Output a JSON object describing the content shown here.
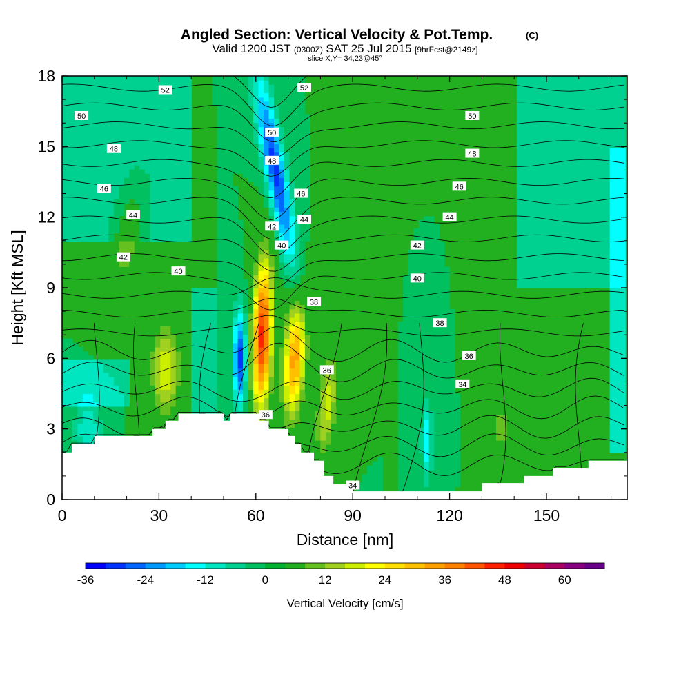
{
  "chart_data": {
    "type": "heatmap",
    "title": "Angled Section: Vertical Velocity & Pot.Temp.",
    "copyright": "(C)",
    "subtitle": {
      "valid": "Valid 1200 JST",
      "utc": "(0300Z)",
      "date": "SAT 25 Jul 2015",
      "forecast": "[9hrFcst@2149z]"
    },
    "slice_note": "slice X,Y= 34,23@45°",
    "xlabel": "Distance [nm]",
    "ylabel": "Height [Kft MSL]",
    "xlim": [
      0,
      175
    ],
    "ylim": [
      0,
      18
    ],
    "xticks": [
      "0",
      "30",
      "60",
      "90",
      "120",
      "150"
    ],
    "xtick_values": [
      0,
      30,
      60,
      90,
      120,
      150
    ],
    "yticks": [
      "0",
      "3",
      "6",
      "9",
      "12",
      "15",
      "18"
    ],
    "ytick_values": [
      0,
      3,
      6,
      9,
      12,
      15,
      18
    ],
    "colorbar": {
      "label": "Vertical Velocity [cm/s]",
      "min": -36,
      "max": 68,
      "step": 4,
      "tick_labels": [
        "-36",
        "-24",
        "-12",
        "0",
        "12",
        "24",
        "36",
        "48",
        "60"
      ],
      "tick_values": [
        -36,
        -24,
        -12,
        0,
        12,
        24,
        36,
        48,
        60
      ],
      "colors": [
        "#0000ff",
        "#0033ff",
        "#0066ff",
        "#0099ff",
        "#00ccff",
        "#00ffff",
        "#00e6c0",
        "#00d090",
        "#00c060",
        "#00b030",
        "#22b020",
        "#66c020",
        "#a0d020",
        "#ccee00",
        "#ffff00",
        "#ffe000",
        "#ffc000",
        "#ffa000",
        "#ff8000",
        "#ff5500",
        "#ff2000",
        "#ee0000",
        "#cc0030",
        "#aa0060",
        "#880080",
        "#660088"
      ]
    },
    "background_value": 0,
    "features": [
      {
        "kind": "downdraft",
        "x": 66,
        "y": 14,
        "value": -30
      },
      {
        "kind": "downdraft",
        "x": 55,
        "y": 6,
        "value": -30
      },
      {
        "kind": "updraft",
        "x": 62,
        "y": 7,
        "value": 46
      },
      {
        "kind": "updraft",
        "x": 72,
        "y": 6,
        "value": 34
      },
      {
        "kind": "updraft",
        "x": 32,
        "y": 5.5,
        "value": 20
      },
      {
        "kind": "updraft",
        "x": 82,
        "y": 4,
        "value": 18
      },
      {
        "kind": "updraft",
        "x": 20,
        "y": 11,
        "value": 10
      },
      {
        "kind": "updraft",
        "x": 136,
        "y": 3,
        "value": 14
      },
      {
        "kind": "downdraft",
        "x": 113,
        "y": 2.5,
        "value": -16
      },
      {
        "kind": "downdraft",
        "x": 8,
        "y": 3,
        "value": -12
      }
    ],
    "terrain": [
      [
        0,
        2
      ],
      [
        3,
        2
      ],
      [
        3,
        2.35
      ],
      [
        10,
        2.35
      ],
      [
        10,
        2.7
      ],
      [
        28,
        2.7
      ],
      [
        28,
        3
      ],
      [
        32,
        3
      ],
      [
        32,
        3.35
      ],
      [
        36,
        3.35
      ],
      [
        36,
        3.65
      ],
      [
        50,
        3.65
      ],
      [
        50,
        3.35
      ],
      [
        52,
        3.35
      ],
      [
        52,
        3.65
      ],
      [
        61,
        3.65
      ],
      [
        61,
        3.35
      ],
      [
        64,
        3.35
      ],
      [
        64,
        3
      ],
      [
        70,
        3
      ],
      [
        70,
        2.7
      ],
      [
        72,
        2.7
      ],
      [
        72,
        2.35
      ],
      [
        74,
        2.35
      ],
      [
        74,
        2
      ],
      [
        78,
        2
      ],
      [
        78,
        1.65
      ],
      [
        81,
        1.65
      ],
      [
        81,
        1
      ],
      [
        84,
        1
      ],
      [
        84,
        0.65
      ],
      [
        90,
        0.65
      ],
      [
        90,
        0.35
      ],
      [
        130,
        0.35
      ],
      [
        130,
        0.7
      ],
      [
        143,
        0.7
      ],
      [
        143,
        1
      ],
      [
        152,
        1
      ],
      [
        152,
        1.35
      ],
      [
        163,
        1.35
      ],
      [
        163,
        1.65
      ],
      [
        175,
        1.65
      ]
    ],
    "isentrope_labels": [
      {
        "text": "52",
        "x": 32,
        "y": 17.4
      },
      {
        "text": "52",
        "x": 75,
        "y": 17.5
      },
      {
        "text": "50",
        "x": 6,
        "y": 16.3
      },
      {
        "text": "50",
        "x": 65,
        "y": 15.6
      },
      {
        "text": "50",
        "x": 127,
        "y": 16.3
      },
      {
        "text": "48",
        "x": 16,
        "y": 14.9
      },
      {
        "text": "48",
        "x": 65,
        "y": 14.4
      },
      {
        "text": "48",
        "x": 127,
        "y": 14.7
      },
      {
        "text": "46",
        "x": 13,
        "y": 13.2
      },
      {
        "text": "46",
        "x": 74,
        "y": 13
      },
      {
        "text": "46",
        "x": 123,
        "y": 13.3
      },
      {
        "text": "44",
        "x": 22,
        "y": 12.1
      },
      {
        "text": "44",
        "x": 75,
        "y": 11.9
      },
      {
        "text": "44",
        "x": 120,
        "y": 12
      },
      {
        "text": "42",
        "x": 19,
        "y": 10.3
      },
      {
        "text": "42",
        "x": 65,
        "y": 11.6
      },
      {
        "text": "42",
        "x": 110,
        "y": 10.8
      },
      {
        "text": "40",
        "x": 36,
        "y": 9.7
      },
      {
        "text": "40",
        "x": 68,
        "y": 10.8
      },
      {
        "text": "40",
        "x": 110,
        "y": 9.4
      },
      {
        "text": "38",
        "x": 78,
        "y": 8.4
      },
      {
        "text": "38",
        "x": 117,
        "y": 7.5
      },
      {
        "text": "36",
        "x": 82,
        "y": 5.5
      },
      {
        "text": "36",
        "x": 126,
        "y": 6.1
      },
      {
        "text": "34",
        "x": 124,
        "y": 4.9
      },
      {
        "text": "36",
        "x": 63,
        "y": 3.6
      },
      {
        "text": "34",
        "x": 90,
        "y": 0.6
      }
    ]
  }
}
